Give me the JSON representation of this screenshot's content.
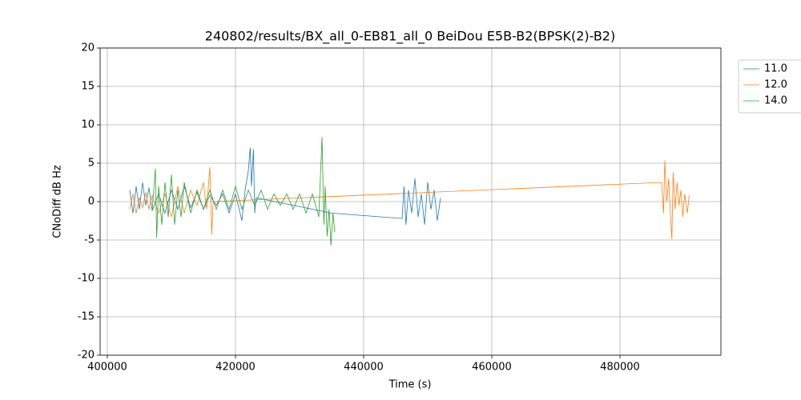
{
  "chart_data": {
    "type": "line",
    "title": "240802/results/BX_all_0-EB81_all_0 BeiDou E5B-B2(BPSK(2)-B2)",
    "x_label": "Time (s)",
    "y_label": "CNoDiff dB Hz",
    "xlim": [
      398875,
      495750
    ],
    "ylim": [
      -20,
      20
    ],
    "xticks": [
      400000,
      420000,
      440000,
      460000,
      480000
    ],
    "yticks": [
      -20,
      -15,
      -10,
      -5,
      0,
      5,
      10,
      15,
      20
    ],
    "grid": true,
    "legend": "outside-upper-right",
    "series": [
      {
        "name": "11.0",
        "color": "#1f77b4",
        "x": [
          403500,
          404000,
          404500,
          405000,
          405500,
          406000,
          406500,
          407000,
          408000,
          409000,
          410000,
          411000,
          412000,
          413000,
          414000,
          415000,
          416000,
          417000,
          418000,
          419000,
          420000,
          421000,
          421500,
          422000,
          422300,
          422500,
          422800,
          423000,
          423200,
          435000,
          446000,
          446300,
          446600,
          447000,
          447500,
          448000,
          448500,
          449000,
          449500,
          450000,
          450500,
          451000,
          451500,
          452000
        ],
        "values": [
          1.5,
          -1.5,
          2,
          -1,
          2.5,
          -0.5,
          1.8,
          -1.2,
          1,
          -1.5,
          1.5,
          -1,
          2,
          -0.8,
          1.2,
          -1,
          0.8,
          -0.5,
          1,
          -1.5,
          1,
          -2.5,
          1.5,
          4,
          7,
          2,
          6.8,
          -1.5,
          0.5,
          -1.5,
          -2.2,
          2,
          -3,
          1.5,
          -1.5,
          3,
          -2,
          1,
          -3,
          2.5,
          -1,
          1.5,
          -2.5,
          0.5
        ]
      },
      {
        "name": "12.0",
        "color": "#ff7f0e",
        "x": [
          403500,
          404000,
          404500,
          405000,
          405500,
          406000,
          406500,
          407000,
          408000,
          409000,
          410000,
          411000,
          412000,
          413000,
          414000,
          415000,
          415500,
          416000,
          416300,
          416500,
          486500,
          486800,
          487000,
          487300,
          487600,
          487900,
          488100,
          488300,
          488600,
          488900,
          489200,
          489500,
          489800,
          490100,
          490500,
          490800
        ],
        "values": [
          -1,
          1,
          -1.5,
          0.5,
          -0.8,
          1.2,
          -1,
          0.8,
          -1.5,
          1,
          -2,
          2,
          -1.5,
          1.5,
          -0.5,
          2.5,
          -1,
          4.5,
          -4.3,
          0,
          2.5,
          -1.5,
          5.3,
          0,
          3,
          -2,
          -4.9,
          3.8,
          -1,
          2.5,
          -0.5,
          1.5,
          -2,
          1,
          -1.5,
          0.8
        ]
      },
      {
        "name": "14.0",
        "color": "#2ca02c",
        "x": [
          407000,
          407500,
          407700,
          408000,
          408500,
          409000,
          409500,
          410000,
          410500,
          411000,
          411500,
          412000,
          413000,
          414000,
          415000,
          416000,
          417000,
          418000,
          419000,
          420000,
          421000,
          422000,
          423000,
          424000,
          425000,
          426000,
          427000,
          428000,
          429000,
          430000,
          431000,
          432000,
          433000,
          433500,
          433800,
          434000,
          434300,
          434600,
          434900,
          435200,
          435500
        ],
        "values": [
          -1,
          4.3,
          -4.7,
          2,
          -3,
          2.5,
          -2,
          3.5,
          -3,
          1.5,
          -2,
          2.5,
          -1.5,
          1.5,
          -1,
          1.5,
          -1,
          1.5,
          -1,
          2,
          -1,
          1.5,
          -0.5,
          1.5,
          -1,
          1,
          -0.5,
          1,
          -1,
          1,
          -1.5,
          1,
          -2,
          8.4,
          -3,
          2,
          -4.5,
          -1,
          -5.7,
          -1.5,
          -4
        ]
      }
    ]
  }
}
